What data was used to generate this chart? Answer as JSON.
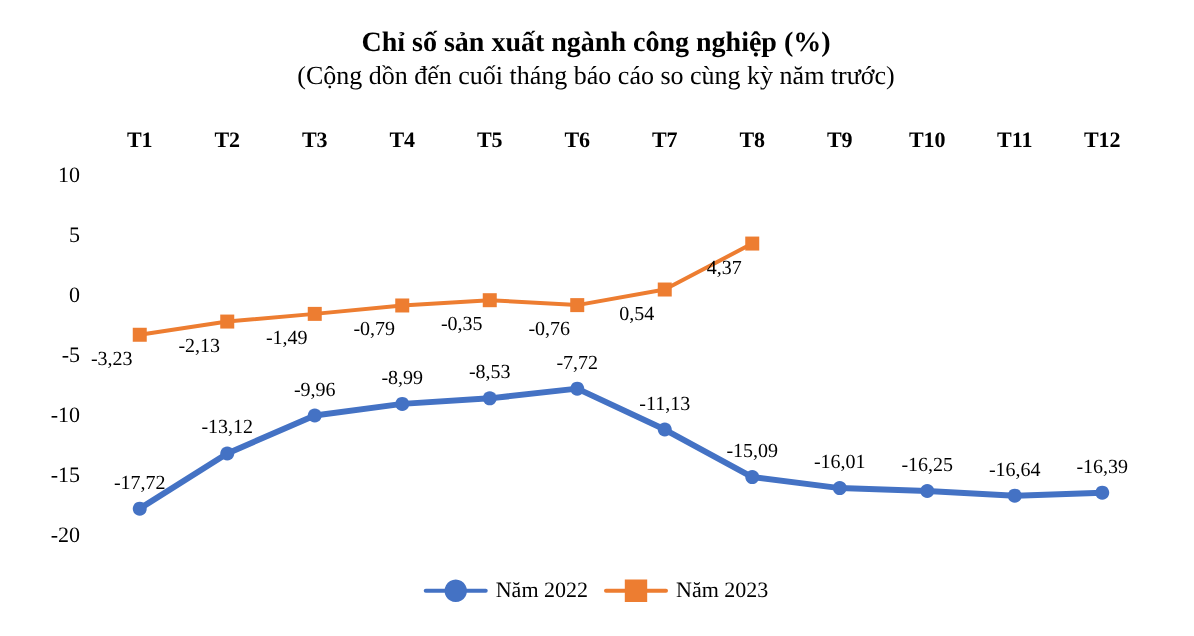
{
  "chart_data": {
    "type": "line",
    "title": "Chỉ số sản xuất ngành công nghiệp (%)",
    "subtitle": "(Cộng dồn đến cuối tháng báo cáo so cùng kỳ năm trước)",
    "categories": [
      "T1",
      "T2",
      "T3",
      "T4",
      "T5",
      "T6",
      "T7",
      "T8",
      "T9",
      "T10",
      "T11",
      "T12"
    ],
    "series": [
      {
        "name": "Năm 2022",
        "color": "#4472c4",
        "marker": "circle",
        "values": [
          -17.72,
          -13.12,
          -9.96,
          -8.99,
          -8.53,
          -7.72,
          -11.13,
          -15.09,
          -16.01,
          -16.25,
          -16.64,
          -16.39
        ],
        "value_labels": [
          "-17,72",
          "-13,12",
          "-9,96",
          "-8,99",
          "-8,53",
          "-7,72",
          "-11,13",
          "-15,09",
          "-16,01",
          "-16,25",
          "-16,64",
          "-16,39"
        ]
      },
      {
        "name": "Năm 2023",
        "color": "#ed7d31",
        "marker": "square",
        "values": [
          -3.23,
          -2.13,
          -1.49,
          -0.79,
          -0.35,
          -0.76,
          0.54,
          4.37,
          null,
          null,
          null,
          null
        ],
        "value_labels": [
          "-3,23",
          "-2,13",
          "-1,49",
          "-0,79",
          "-0,35",
          "-0,76",
          "0,54",
          "4,37",
          null,
          null,
          null,
          null
        ]
      }
    ],
    "ylim": [
      -20,
      10
    ],
    "yticks": [
      -20,
      -15,
      -10,
      -5,
      0,
      5,
      10
    ],
    "grid": false,
    "legend": "bottom",
    "line_style": "solid"
  }
}
